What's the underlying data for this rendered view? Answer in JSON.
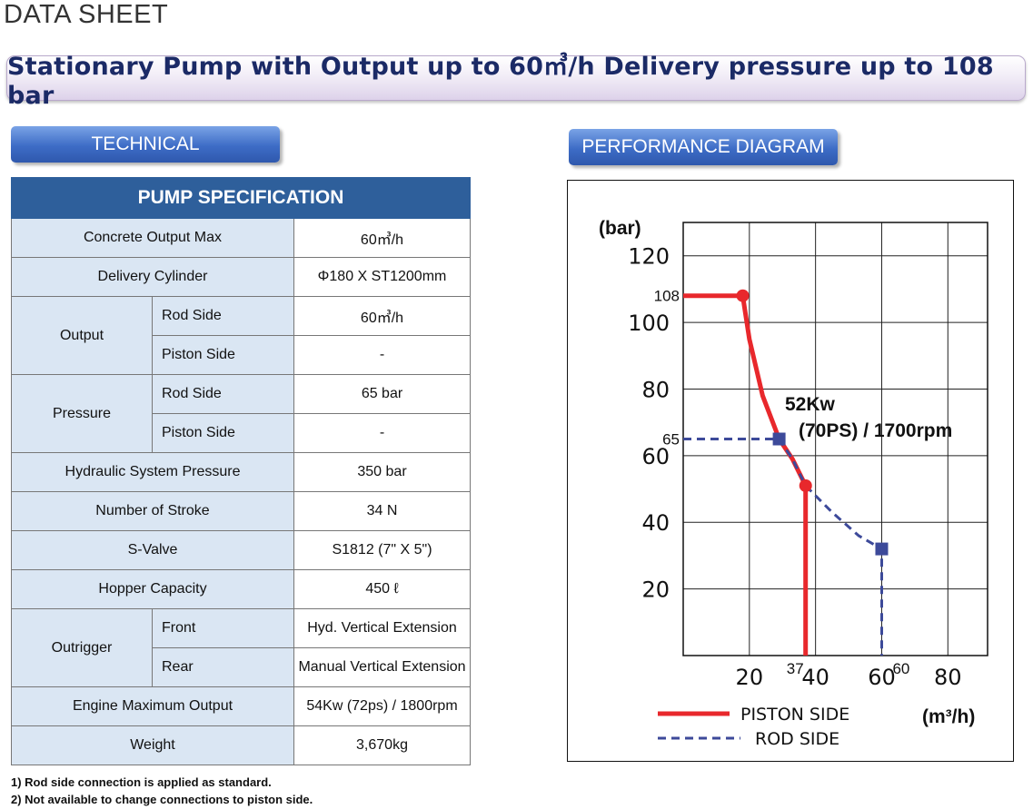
{
  "header": {
    "title": "DATA SHEET",
    "banner": "Stationary Pump with Output up to 60㎥/h Delivery pressure up to 108 bar"
  },
  "sections": {
    "technical": "TECHNICAL",
    "performance": "PERFORMANCE DIAGRAM"
  },
  "spec_table": {
    "title": "PUMP SPECIFICATION",
    "concrete_output_label": "Concrete Output Max",
    "concrete_output_value": "60㎥/h",
    "delivery_cylinder_label": "Delivery Cylinder",
    "delivery_cylinder_value": "Φ180 X ST1200mm",
    "output_label": "Output",
    "output_rod_label": "Rod Side",
    "output_rod_value": "60㎥/h",
    "output_piston_label": "Piston Side",
    "output_piston_value": "-",
    "pressure_label": "Pressure",
    "pressure_rod_label": "Rod Side",
    "pressure_rod_value": "65 bar",
    "pressure_piston_label": "Piston Side",
    "pressure_piston_value": "-",
    "hydraulic_label": "Hydraulic System Pressure",
    "hydraulic_value": "350 bar",
    "stroke_label": "Number of Stroke",
    "stroke_value": "34 N",
    "svalve_label": "S-Valve",
    "svalve_value": "S1812 (7\" X 5\")",
    "hopper_label": "Hopper Capacity",
    "hopper_value": "450 ℓ",
    "outrigger_label": "Outrigger",
    "outrigger_front_label": "Front",
    "outrigger_front_value": "Hyd. Vertical Extension",
    "outrigger_rear_label": "Rear",
    "outrigger_rear_value": "Manual Vertical Extension",
    "engine_label": "Engine Maximum Output",
    "engine_value": "54Kw (72ps) / 1800rpm",
    "weight_label": "Weight",
    "weight_value": "3,670kg"
  },
  "notes": {
    "note1": "1)  Rod side connection is applied as standard.",
    "note2": "2)  Not available to change connections to piston side."
  },
  "colors": {
    "piston": "#e8282c",
    "rod": "#3d4a9a",
    "table_header": "#2e5f9b",
    "label_cell": "#dae6f3",
    "banner_text": "#1b2a66"
  },
  "chart_data": {
    "type": "line",
    "ylabel": "(bar)",
    "xlabel": "(m³/h)",
    "xlim": [
      0,
      92
    ],
    "ylim": [
      0,
      130
    ],
    "x_ticks": [
      "20",
      "40",
      "60",
      "80"
    ],
    "y_ticks": [
      "20",
      "40",
      "60",
      "80",
      "100",
      "120"
    ],
    "grid": true,
    "annotation_line1": "52Kw",
    "annotation_line2": "(70PS) / 1700rpm",
    "value_labels": {
      "y108": "108",
      "y65": "65",
      "x37": "37",
      "x60": "60"
    },
    "series": [
      {
        "name": "PISTON SIDE",
        "style": "solid",
        "points": [
          [
            0,
            108
          ],
          [
            18,
            108
          ],
          [
            20,
            95
          ],
          [
            24,
            78
          ],
          [
            29,
            65
          ],
          [
            33,
            59
          ],
          [
            37,
            51
          ],
          [
            37,
            0
          ]
        ]
      },
      {
        "name": "ROD SIDE",
        "style": "dashed",
        "points": [
          [
            0,
            65
          ],
          [
            29,
            65
          ],
          [
            33,
            59
          ],
          [
            37,
            51
          ],
          [
            45,
            43
          ],
          [
            53,
            36
          ],
          [
            60,
            32
          ],
          [
            60,
            0
          ]
        ]
      }
    ]
  }
}
